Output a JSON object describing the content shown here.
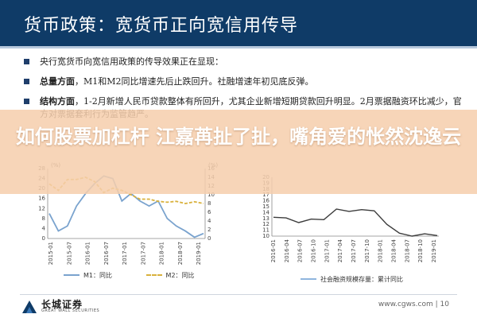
{
  "header": {
    "title": "货币政策：宽货币正向宽信用传导"
  },
  "bullets": [
    {
      "bold": "",
      "text": "央行宽货币向宽信用政策的传导效果正在显现："
    },
    {
      "bold": "总量方面",
      "text": "，M1和M2同比增速先后止跌回升。社融增速年初见底反弹。"
    },
    {
      "bold": "结构方面",
      "text": "，1-2月新增人民币贷款整体有所回升，尤其企业新增短期贷款回升明显。2月票据融资环比减少，官方对票据套利行为监管趋严。"
    }
  ],
  "overlay": {
    "headline": "如何股票加杠杆 江嘉苒扯了扯，嘴角爱的怅然沈逸云"
  },
  "chart_left": {
    "left_axis_unit": "(%)",
    "right_axis_unit": "(%)",
    "left_ticks": [
      "0",
      "2",
      "4",
      "6",
      "8",
      "10",
      "12",
      "14",
      "16",
      "18",
      "20",
      "22",
      "24",
      "26",
      "28"
    ],
    "right_ticks": [
      "0",
      "2",
      "4",
      "6",
      "8",
      "10",
      "12",
      "14",
      "16"
    ],
    "x_ticks": [
      "2015-01",
      "2015-07",
      "2016-01",
      "2016-07",
      "2017-01",
      "2017-07",
      "2018-01",
      "2018-07",
      "2019-01"
    ],
    "series_colors": {
      "m1": "#7aa3ce",
      "m2": "#d9b13c"
    }
  },
  "chart_right": {
    "y_ticks": [
      "10",
      "11",
      "12",
      "13",
      "14",
      "15",
      "16",
      "17",
      "18",
      "19",
      "20"
    ],
    "x_ticks": [
      "2016-01",
      "2016-04",
      "2016-07",
      "2016-10",
      "2017-01",
      "2017-04",
      "2017-07",
      "2017-10",
      "2018-01",
      "2018-04",
      "2018-07",
      "2018-10",
      "2019-01"
    ],
    "series_color": "#8fb5de"
  },
  "chart_data": [
    {
      "type": "line",
      "x": [
        "2015-01",
        "2015-04",
        "2015-07",
        "2015-10",
        "2016-01",
        "2016-04",
        "2016-07",
        "2016-10",
        "2017-01",
        "2017-04",
        "2017-07",
        "2017-10",
        "2018-01",
        "2018-04",
        "2018-07",
        "2018-10",
        "2019-01",
        "2019-02"
      ],
      "series": [
        {
          "name": "M1：同比",
          "axis": "left",
          "values": [
            10,
            3,
            5,
            13,
            18,
            22,
            25,
            24,
            15,
            18,
            15,
            13,
            15,
            8,
            5,
            3,
            0.5,
            2
          ]
        },
        {
          "name": "M2：同比",
          "axis": "right",
          "values": [
            12.5,
            11,
            13.5,
            13.5,
            14,
            13,
            10.5,
            11.5,
            11,
            10,
            9,
            9,
            8.5,
            8.3,
            8.5,
            8,
            8.4,
            8
          ]
        }
      ],
      "ylim": [
        0,
        28
      ],
      "y2lim": [
        0,
        16
      ]
    },
    {
      "type": "line",
      "x": [
        "2016-01",
        "2016-04",
        "2016-07",
        "2016-10",
        "2017-01",
        "2017-04",
        "2017-07",
        "2017-10",
        "2018-01",
        "2018-04",
        "2018-07",
        "2018-10",
        "2019-01",
        "2019-02"
      ],
      "series": [
        {
          "name": "社会融资规模存量：累计同比",
          "values": [
            13.2,
            13.1,
            12.3,
            12.9,
            12.8,
            14.6,
            14.2,
            14.5,
            14.3,
            12.0,
            10.5,
            10.0,
            10.4,
            10.1
          ]
        }
      ],
      "ylim": [
        10,
        20
      ]
    }
  ],
  "legend": {
    "m1": "M1：同比",
    "m2": "M2：同比",
    "social": "社会融资规模存量：累计同比"
  },
  "footer": {
    "logo_cn": "长城证券",
    "logo_en": "GREAT WALL SECURITIES",
    "site": "www.cgws.com",
    "page": "10"
  }
}
